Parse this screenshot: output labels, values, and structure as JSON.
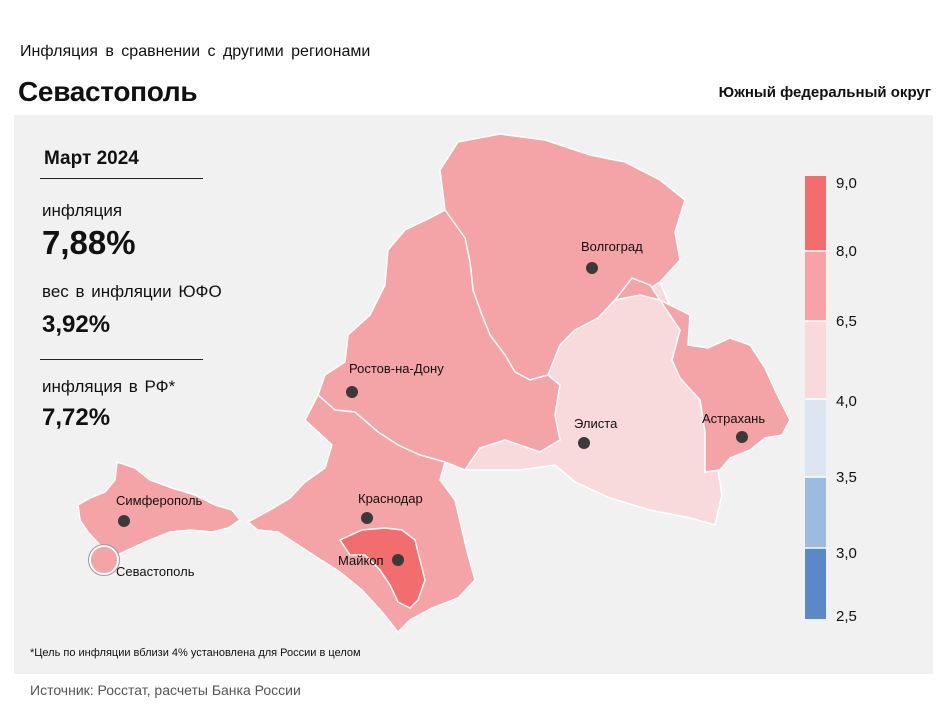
{
  "header": {
    "subtitle": "Инфляция  в сравнении  с другими  регионами",
    "title": "Севастополь",
    "district": "Южный федеральный округ"
  },
  "info": {
    "date": "Март 2024",
    "inflation_label": "инфляция",
    "inflation_value": "7,88%",
    "weight_label": "вес в инфляции  ЮФО",
    "weight_value": "3,92%",
    "rf_label": "инфляция  в РФ*",
    "rf_value": "7,72%"
  },
  "cities": {
    "volgograd": "Волгоград",
    "rostov": "Ростов-на-Дону",
    "elista": "Элиста",
    "astrakhan": "Астрахань",
    "simferopol": "Симферополь",
    "krasnodar": "Краснодар",
    "maykop": "Майкоп",
    "sevastopol": "Севастополь"
  },
  "legend": {
    "ticks": [
      "9,0",
      "8,0",
      "6,5",
      "4,0",
      "3,5",
      "3,0",
      "2,5"
    ],
    "colors": [
      "#f26d6d",
      "#f7a3a5",
      "#f8dadc",
      "#dde4f2",
      "#9dbadf",
      "#5b89c8"
    ]
  },
  "colors": {
    "band_6_5_8_0": "#f4a3a6",
    "band_4_0_6_5": "#f8dadc",
    "band_8_0_9_0": "#f26d6d"
  },
  "footnote": "*Цель по инфляции вблизи 4% установлена для России в целом",
  "source": "Источник: Росстат, расчеты Банка России"
}
